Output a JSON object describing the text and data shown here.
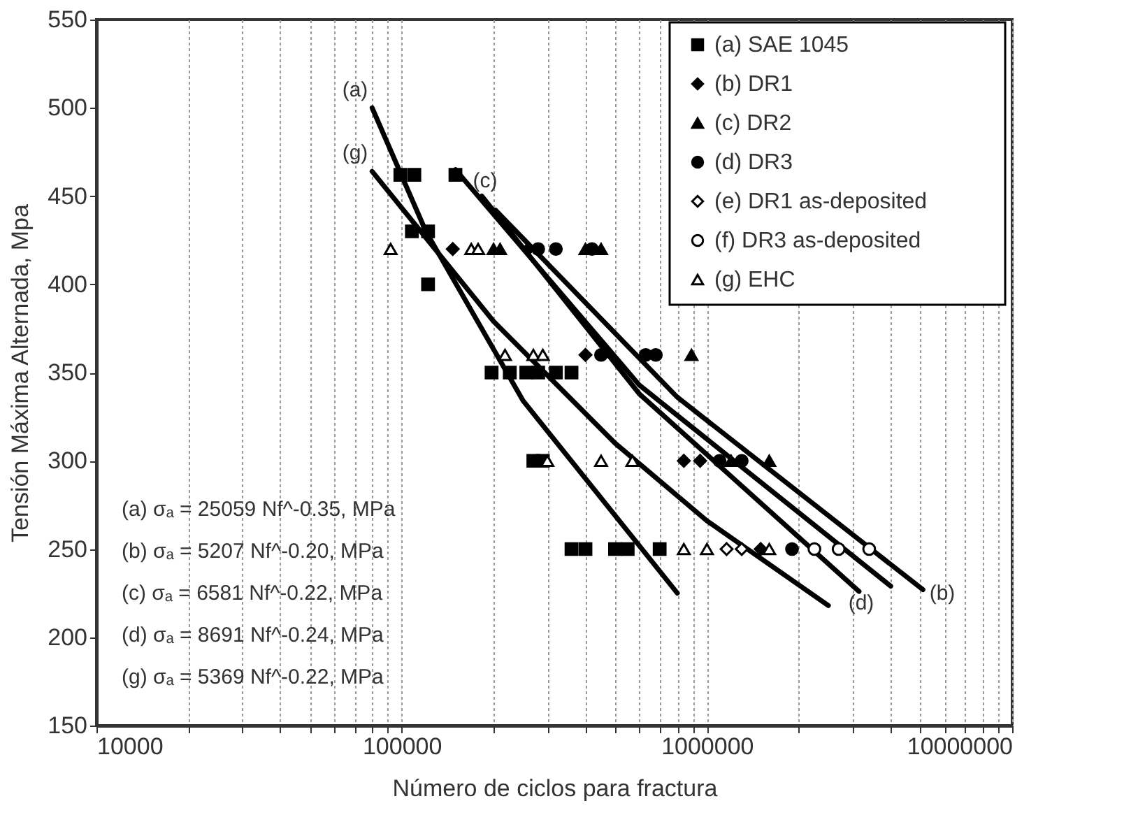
{
  "chart_data": {
    "type": "scatter",
    "xlabel": "Número de ciclos para fractura",
    "ylabel": "Tensión Máxima Alternada, Mpa",
    "log": "x",
    "grid": "x",
    "legend": "top right",
    "xlim": [
      10000,
      10000000
    ],
    "ylim": [
      150,
      550
    ],
    "xticks": [
      10000,
      {
        "value": 20000,
        "label": null
      },
      {
        "value": 30000,
        "label": null
      },
      {
        "value": 40000,
        "label": null
      },
      {
        "value": 50000,
        "label": null
      },
      {
        "value": 60000,
        "label": null
      },
      {
        "value": 70000,
        "label": null
      },
      {
        "value": 80000,
        "label": null
      },
      {
        "value": 90000,
        "label": null
      },
      100000,
      {
        "value": 200000,
        "label": null
      },
      {
        "value": 300000,
        "label": null
      },
      {
        "value": 400000,
        "label": null
      },
      {
        "value": 500000,
        "label": null
      },
      {
        "value": 600000,
        "label": null
      },
      {
        "value": 700000,
        "label": null
      },
      {
        "value": 800000,
        "label": null
      },
      {
        "value": 900000,
        "label": null
      },
      1000000,
      {
        "value": 2000000,
        "label": null
      },
      {
        "value": 3000000,
        "label": null
      },
      {
        "value": 4000000,
        "label": null
      },
      {
        "value": 5000000,
        "label": null
      },
      {
        "value": 6000000,
        "label": null
      },
      {
        "value": 7000000,
        "label": null
      },
      {
        "value": 8000000,
        "label": null
      },
      {
        "value": 9000000,
        "label": null
      },
      10000000
    ],
    "yticks": [
      150,
      200,
      250,
      300,
      350,
      400,
      450,
      500,
      550
    ],
    "series": [
      {
        "name": "(a) SAE 1045",
        "marker": "square",
        "color": "#000000",
        "x": [
          99000,
          110000,
          150000,
          108000,
          122000,
          122000,
          197000,
          226000,
          256000,
          280000,
          320000,
          360000,
          270000,
          290000,
          360000,
          400000,
          500000,
          550000,
          700000
        ],
        "values": [
          462,
          462,
          462,
          430,
          430,
          400,
          350,
          350,
          350,
          350,
          350,
          350,
          300,
          300,
          250,
          250,
          250,
          250,
          250
        ]
      },
      {
        "name": "(b) DR1",
        "marker": "diamond",
        "color": "#000000",
        "x": [
          147000,
          260000,
          400000,
          840000,
          950000,
          1500000
        ],
        "values": [
          420,
          420,
          360,
          300,
          300,
          250
        ]
      },
      {
        "name": "(c) DR2",
        "marker": "triangle",
        "color": "#000000",
        "x": [
          200000,
          210000,
          400000,
          450000,
          890000,
          1200000,
          1600000
        ],
        "values": [
          420,
          420,
          420,
          420,
          360,
          300,
          300
        ]
      },
      {
        "name": "(d) DR3",
        "marker": "circle",
        "color": "#000000",
        "x": [
          280000,
          320000,
          420000,
          450000,
          630000,
          680000,
          1100000,
          1300000,
          1900000
        ],
        "values": [
          420,
          420,
          420,
          360,
          360,
          360,
          300,
          300,
          250
        ]
      },
      {
        "name": "(e) DR1 as-deposited",
        "marker": "diamond",
        "color": "#ffffff",
        "x": [
          1160000,
          1300000
        ],
        "values": [
          250,
          250
        ]
      },
      {
        "name": "(f)  DR3 as-deposited",
        "marker": "circle",
        "color": "#ffffff",
        "x": [
          2250000,
          2700000,
          3400000
        ],
        "values": [
          250,
          250,
          250
        ]
      },
      {
        "name": "(g) EHC",
        "marker": "triangle",
        "color": "#ffffff",
        "x": [
          92000,
          169000,
          178000,
          218000,
          270000,
          290000,
          300000,
          450000,
          570000,
          840000,
          1000000,
          1600000
        ],
        "values": [
          420,
          420,
          420,
          360,
          360,
          360,
          300,
          300,
          300,
          250,
          250,
          250
        ]
      },
      {
        "type": "line",
        "color": "#000000",
        "x": [
          80000,
          120000,
          250000,
          800000
        ],
        "values": [
          500,
          430,
          334,
          225
        ]
      },
      {
        "type": "line",
        "color": "#000000",
        "x": [
          80000,
          200000,
          500000,
          1000000,
          2500000
        ],
        "values": [
          464,
          379,
          310,
          266,
          218
        ]
      },
      {
        "type": "line",
        "color": "#000000",
        "x": [
          183000,
          600000,
          3150000
        ],
        "values": [
          450,
          338,
          226
        ]
      },
      {
        "type": "line",
        "color": "#000000",
        "x": [
          150000,
          600000,
          4000000
        ],
        "values": [
          465,
          343,
          229
        ]
      },
      {
        "type": "line",
        "color": "#000000",
        "x": [
          203000,
          800000,
          5100000
        ],
        "values": [
          442,
          336,
          227
        ]
      }
    ],
    "annotations": [
      "(a)",
      "(g)",
      "(c)",
      "(d)",
      "(b)",
      "(a) σₐ = 25059 Nf^-0.35, MPa",
      "(b) σₐ = 5207 Nf^-0.20, MPa",
      "(c) σₐ = 6581 Nf^-0.22, MPa",
      "(d) σₐ = 8691 Nf^-0.24, MPa",
      "(g) σₐ = 5369 Nf^-0.22, MPa"
    ]
  }
}
